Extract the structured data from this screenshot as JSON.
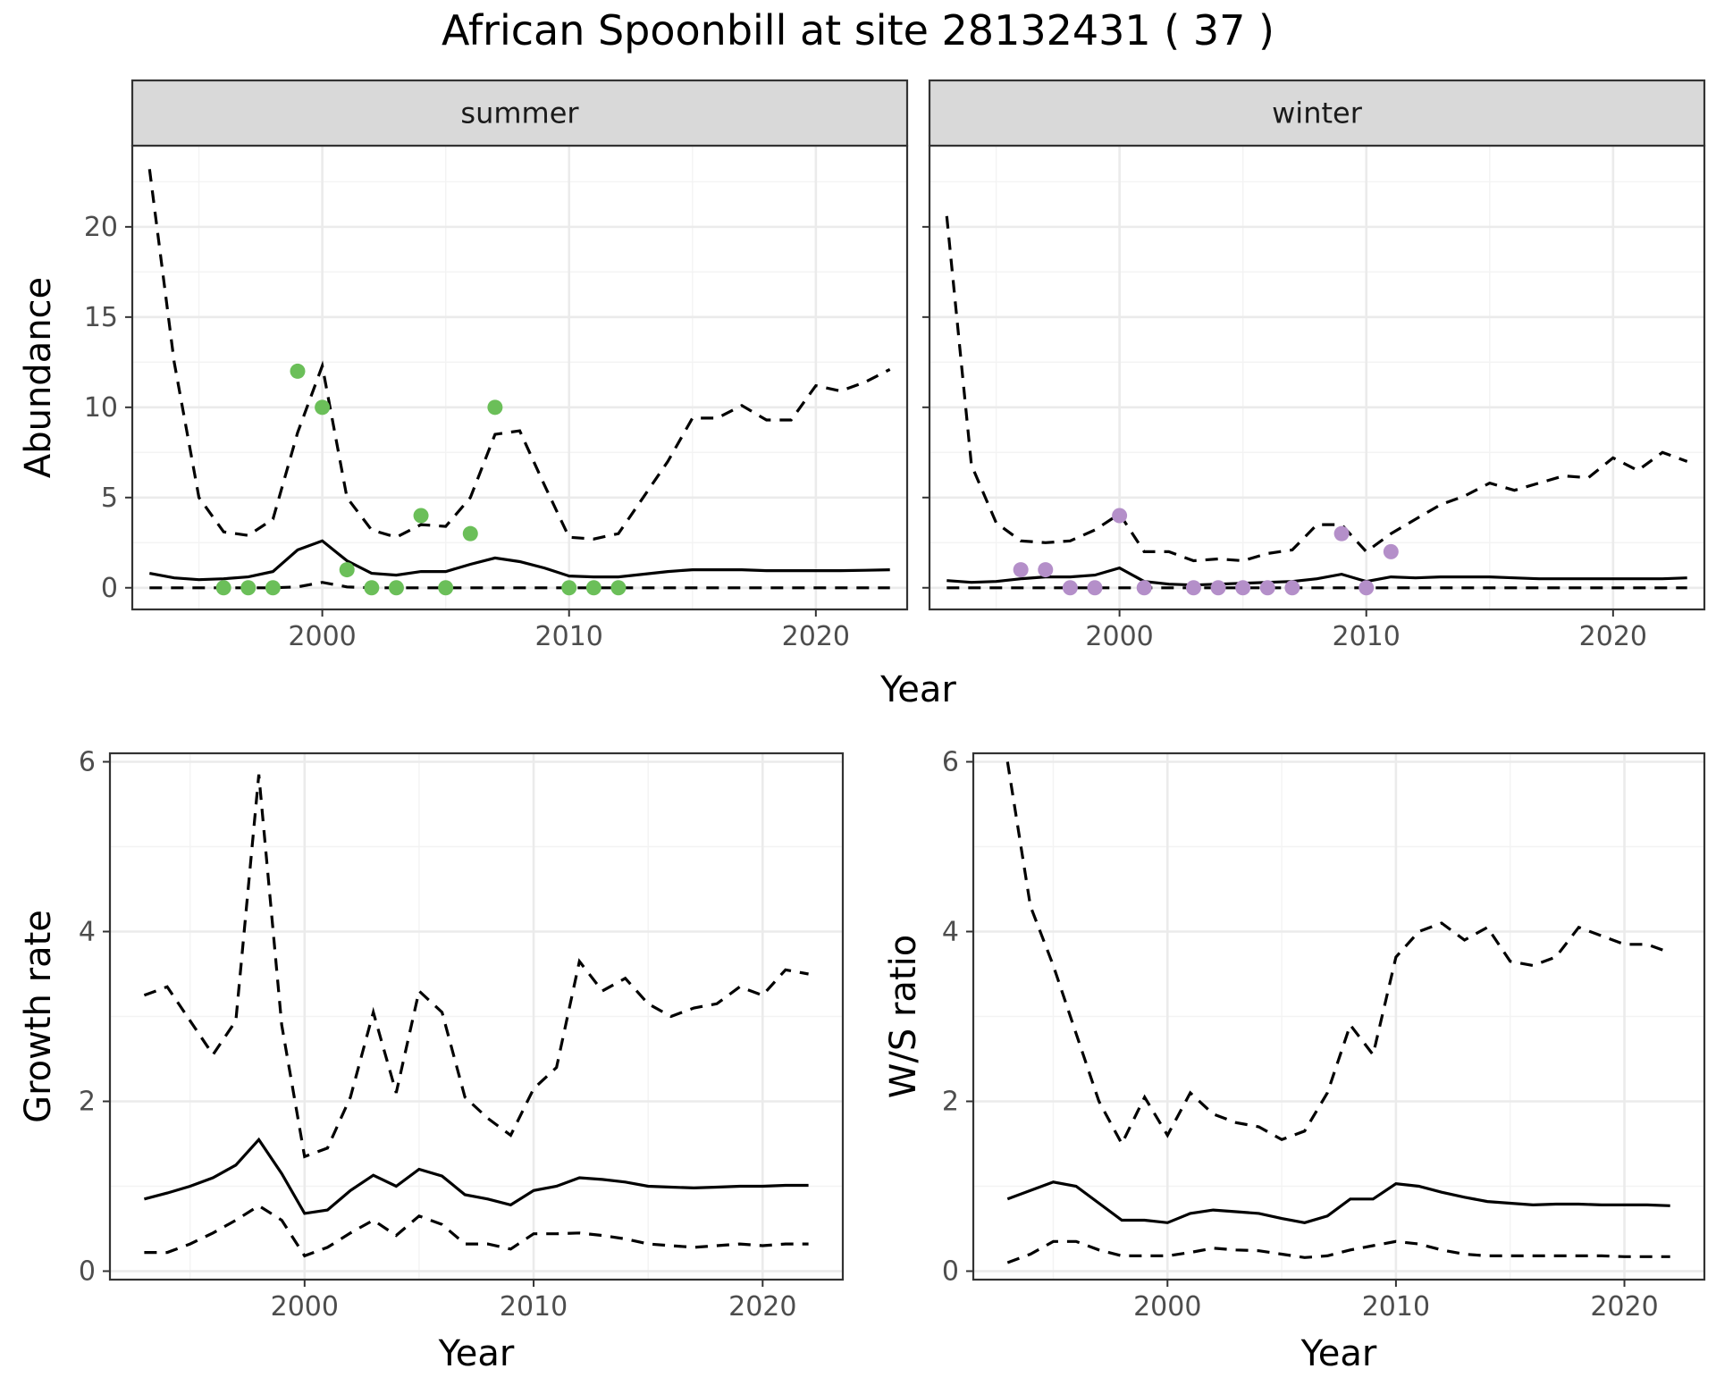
{
  "figure_title": "African Spoonbill at site 28132431 ( 37 )",
  "chart_data": [
    {
      "id": "summer",
      "type": "line",
      "strip": "summer",
      "xlabel": "Year",
      "ylabel": "Abundance",
      "xlim": [
        1992.3,
        2023.7
      ],
      "ylim": [
        -1.2,
        24.5
      ],
      "xticks": [
        2000,
        2010,
        2020
      ],
      "yticks": [
        0,
        5,
        10,
        15,
        20
      ],
      "grid": true,
      "point_color": "#6bbf59",
      "x": [
        1993,
        1994,
        1995,
        1996,
        1997,
        1998,
        1999,
        2000,
        2001,
        2002,
        2003,
        2004,
        2005,
        2006,
        2007,
        2008,
        2009,
        2010,
        2011,
        2012,
        2013,
        2014,
        2015,
        2016,
        2017,
        2018,
        2019,
        2020,
        2021,
        2022,
        2023
      ],
      "series": [
        {
          "style": "upper",
          "values": [
            23.2,
            12.5,
            5.0,
            3.1,
            2.9,
            3.8,
            8.6,
            12.3,
            5.0,
            3.2,
            2.8,
            3.5,
            3.4,
            5.0,
            8.5,
            8.7,
            5.7,
            2.8,
            2.7,
            3.0,
            5.0,
            7.0,
            9.4,
            9.4,
            10.1,
            9.3,
            9.3,
            11.2,
            10.9,
            11.4,
            12.1
          ]
        },
        {
          "style": "estimate",
          "values": [
            0.8,
            0.55,
            0.45,
            0.5,
            0.6,
            0.9,
            2.1,
            2.6,
            1.5,
            0.8,
            0.7,
            0.9,
            0.9,
            1.3,
            1.65,
            1.45,
            1.1,
            0.65,
            0.6,
            0.6,
            0.75,
            0.9,
            1.0,
            1.0,
            1.0,
            0.95,
            0.95,
            0.95,
            0.95,
            0.97,
            1.0
          ]
        },
        {
          "style": "lower",
          "values": [
            0,
            0,
            0,
            0,
            0,
            0,
            0.05,
            0.3,
            0.05,
            0,
            0,
            0,
            0,
            0,
            0,
            0,
            0,
            0,
            0,
            0,
            0,
            0,
            0,
            0,
            0,
            0,
            0,
            0,
            0,
            0,
            0
          ]
        }
      ],
      "points": {
        "x": [
          1996,
          1997,
          1998,
          1999,
          2000,
          2001,
          2002,
          2003,
          2004,
          2005,
          2006,
          2007,
          2010,
          2011,
          2012
        ],
        "y": [
          0,
          0,
          0,
          12,
          10,
          1,
          0,
          0,
          4,
          0,
          3,
          10,
          0,
          0,
          0
        ]
      }
    },
    {
      "id": "winter",
      "type": "line",
      "strip": "winter",
      "xlabel": "Year",
      "ylabel": "Abundance",
      "xlim": [
        1992.3,
        2023.7
      ],
      "ylim": [
        -1.2,
        24.5
      ],
      "xticks": [
        2000,
        2010,
        2020
      ],
      "yticks": [
        0,
        5,
        10,
        15,
        20
      ],
      "grid": true,
      "point_color": "#b48fc9",
      "x": [
        1993,
        1994,
        1995,
        1996,
        1997,
        1998,
        1999,
        2000,
        2001,
        2002,
        2003,
        2004,
        2005,
        2006,
        2007,
        2008,
        2009,
        2010,
        2011,
        2012,
        2013,
        2014,
        2015,
        2016,
        2017,
        2018,
        2019,
        2020,
        2021,
        2022,
        2023
      ],
      "series": [
        {
          "style": "upper",
          "values": [
            20.6,
            6.8,
            3.6,
            2.6,
            2.5,
            2.6,
            3.2,
            4.1,
            2.0,
            2.0,
            1.5,
            1.6,
            1.5,
            1.9,
            2.1,
            3.5,
            3.5,
            2.0,
            3.0,
            3.8,
            4.6,
            5.1,
            5.8,
            5.4,
            5.8,
            6.2,
            6.1,
            7.2,
            6.5,
            7.5,
            7.0
          ]
        },
        {
          "style": "estimate",
          "values": [
            0.4,
            0.3,
            0.35,
            0.5,
            0.6,
            0.6,
            0.7,
            1.1,
            0.35,
            0.2,
            0.15,
            0.2,
            0.25,
            0.3,
            0.35,
            0.5,
            0.75,
            0.35,
            0.6,
            0.55,
            0.6,
            0.6,
            0.6,
            0.55,
            0.5,
            0.5,
            0.5,
            0.5,
            0.5,
            0.5,
            0.55
          ]
        },
        {
          "style": "lower",
          "values": [
            0,
            0,
            0,
            0,
            0,
            0,
            0,
            0,
            0,
            0,
            0,
            0,
            0,
            0,
            0,
            0,
            0,
            0,
            0,
            0,
            0,
            0,
            0,
            0,
            0,
            0,
            0,
            0,
            0,
            0,
            0
          ]
        }
      ],
      "points": {
        "x": [
          1996,
          1997,
          1998,
          1999,
          2000,
          2001,
          2003,
          2004,
          2005,
          2006,
          2007,
          2009,
          2010,
          2011
        ],
        "y": [
          1,
          1,
          0,
          0,
          4,
          0,
          0,
          0,
          0,
          0,
          0,
          3,
          0,
          2
        ]
      }
    },
    {
      "id": "growth",
      "type": "line",
      "xlabel": "Year",
      "ylabel": "Growth rate",
      "xlim": [
        1991.5,
        2023.5
      ],
      "ylim": [
        -0.1,
        6.1
      ],
      "xticks": [
        2000,
        2010,
        2020
      ],
      "yticks": [
        0,
        2,
        4,
        6
      ],
      "grid": true,
      "x": [
        1993,
        1994,
        1995,
        1996,
        1997,
        1998,
        1999,
        2000,
        2001,
        2002,
        2003,
        2004,
        2005,
        2006,
        2007,
        2008,
        2009,
        2010,
        2011,
        2012,
        2013,
        2014,
        2015,
        2016,
        2017,
        2018,
        2019,
        2020,
        2021,
        2022
      ],
      "series": [
        {
          "style": "upper",
          "values": [
            3.25,
            3.35,
            2.95,
            2.55,
            2.95,
            5.85,
            2.9,
            1.35,
            1.45,
            2.05,
            3.05,
            2.1,
            3.3,
            3.05,
            2.05,
            1.8,
            1.6,
            2.15,
            2.4,
            3.65,
            3.3,
            3.45,
            3.15,
            3.0,
            3.1,
            3.15,
            3.35,
            3.25,
            3.55,
            3.5
          ]
        },
        {
          "style": "estimate",
          "values": [
            0.85,
            0.92,
            1.0,
            1.1,
            1.25,
            1.55,
            1.15,
            0.68,
            0.72,
            0.95,
            1.13,
            1.0,
            1.2,
            1.12,
            0.9,
            0.85,
            0.78,
            0.95,
            1.0,
            1.1,
            1.08,
            1.05,
            1.0,
            0.99,
            0.98,
            0.99,
            1.0,
            1.0,
            1.01,
            1.01
          ]
        },
        {
          "style": "lower",
          "values": [
            0.22,
            0.22,
            0.32,
            0.45,
            0.6,
            0.77,
            0.6,
            0.18,
            0.28,
            0.45,
            0.6,
            0.42,
            0.65,
            0.55,
            0.32,
            0.32,
            0.26,
            0.44,
            0.44,
            0.45,
            0.42,
            0.38,
            0.32,
            0.3,
            0.28,
            0.3,
            0.32,
            0.3,
            0.32,
            0.32
          ]
        }
      ]
    },
    {
      "id": "ratio",
      "type": "line",
      "xlabel": "Year",
      "ylabel": "W/S ratio",
      "xlim": [
        1991.5,
        2023.5
      ],
      "ylim": [
        -0.1,
        6.1
      ],
      "xticks": [
        2000,
        2010,
        2020
      ],
      "yticks": [
        0,
        2,
        4,
        6
      ],
      "grid": true,
      "x": [
        1993,
        1994,
        1995,
        1996,
        1997,
        1998,
        1999,
        2000,
        2001,
        2002,
        2003,
        2004,
        2005,
        2006,
        2007,
        2008,
        2009,
        2010,
        2011,
        2012,
        2013,
        2014,
        2015,
        2016,
        2017,
        2018,
        2019,
        2020,
        2021,
        2022
      ],
      "series": [
        {
          "style": "upper",
          "values": [
            6.0,
            4.3,
            3.6,
            2.8,
            2.0,
            1.5,
            2.05,
            1.6,
            2.1,
            1.85,
            1.75,
            1.7,
            1.55,
            1.65,
            2.1,
            2.9,
            2.55,
            3.7,
            4.0,
            4.1,
            3.9,
            4.05,
            3.65,
            3.6,
            3.7,
            4.05,
            3.95,
            3.85,
            3.85,
            3.75
          ]
        },
        {
          "style": "estimate",
          "values": [
            0.85,
            0.95,
            1.05,
            1.0,
            0.8,
            0.6,
            0.6,
            0.57,
            0.68,
            0.72,
            0.7,
            0.68,
            0.62,
            0.57,
            0.65,
            0.85,
            0.85,
            1.03,
            1.0,
            0.93,
            0.87,
            0.82,
            0.8,
            0.78,
            0.79,
            0.79,
            0.78,
            0.78,
            0.78,
            0.77
          ]
        },
        {
          "style": "lower",
          "values": [
            0.1,
            0.2,
            0.35,
            0.35,
            0.25,
            0.18,
            0.18,
            0.18,
            0.22,
            0.27,
            0.25,
            0.24,
            0.2,
            0.16,
            0.18,
            0.25,
            0.3,
            0.35,
            0.32,
            0.25,
            0.2,
            0.18,
            0.18,
            0.18,
            0.18,
            0.18,
            0.18,
            0.17,
            0.17,
            0.17
          ]
        }
      ]
    }
  ]
}
